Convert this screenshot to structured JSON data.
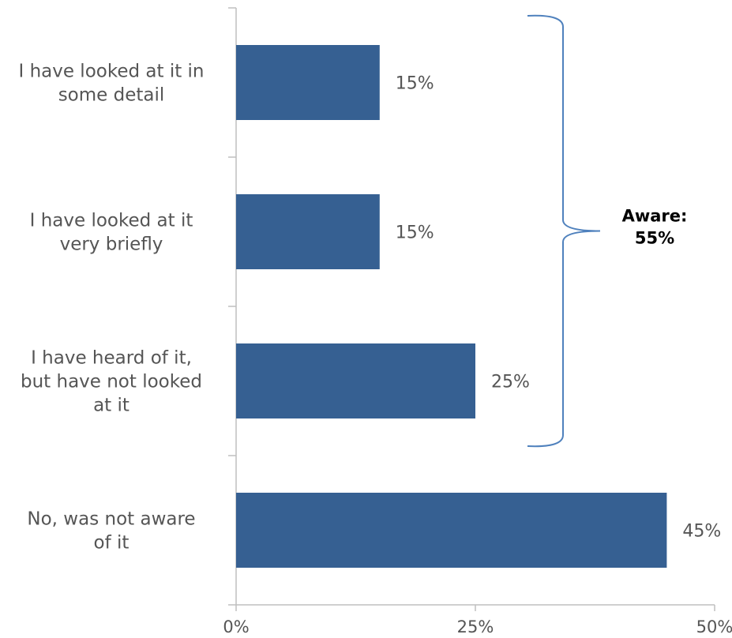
{
  "chart_data": {
    "type": "bar",
    "orientation": "horizontal",
    "categories": [
      "I have looked at it in some detail",
      "I have looked at it very briefly",
      "I have heard of it, but have not looked at it",
      "No, was not aware of it"
    ],
    "category_lines": [
      [
        "I have looked at it in",
        "some detail"
      ],
      [
        "I have looked at it",
        "very briefly"
      ],
      [
        "I have heard of it,",
        "but have not looked",
        "at it"
      ],
      [
        "No, was not aware",
        "of it"
      ]
    ],
    "values": [
      15,
      15,
      25,
      45
    ],
    "data_labels": [
      "15%",
      "15%",
      "25%",
      "45%"
    ],
    "xlim": [
      0,
      50
    ],
    "x_ticks": [
      0,
      25,
      50
    ],
    "x_tick_labels": [
      "0%",
      "25%",
      "50%"
    ],
    "grid": false,
    "legend": "none",
    "bar_color": "#366092",
    "axis_color": "#bfbfbf",
    "bracket_color": "#4f81bd",
    "annotation": {
      "lines": [
        "Aware:",
        "55%"
      ],
      "spans_categories": [
        0,
        1,
        2
      ]
    }
  }
}
